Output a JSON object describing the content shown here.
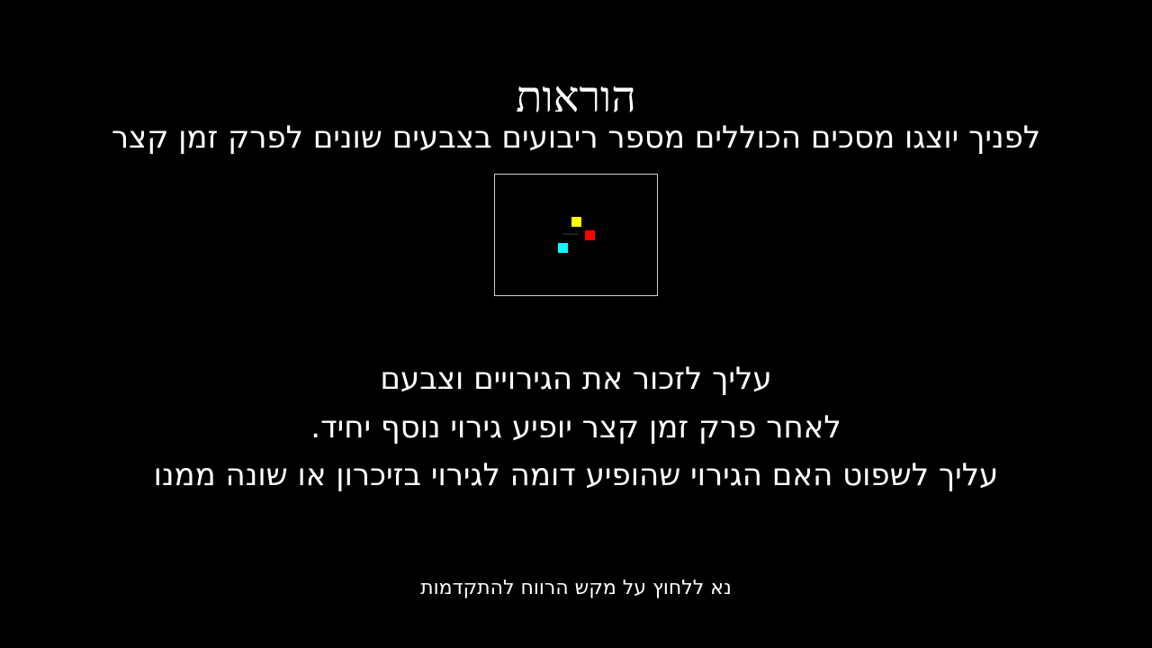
{
  "screen": {
    "background_color": "#000000",
    "text_color": "#ffffff"
  },
  "header": {
    "title": "הוראות",
    "subtitle": "לפניך יוצגו מסכים הכוללים מספר ריבועים בצבעים שונים לפרק זמן קצר"
  },
  "example": {
    "squares": [
      {
        "color": "#ffff00",
        "name": "yellow"
      },
      {
        "color": "#ff0000",
        "name": "red"
      },
      {
        "color": "#00ffff",
        "name": "cyan"
      }
    ],
    "tiny_text": "Focus here"
  },
  "instructions": {
    "line1": "עליך לזכור את הגירויים וצבעם",
    "line2": "לאחר פרק זמן קצר יופיע גירוי נוסף יחיד.",
    "line3": "עליך לשפוט האם הגירוי שהופיע דומה לגירוי בזיכרון או שונה ממנו"
  },
  "footer": {
    "prompt": "נא ללחוץ על מקש הרווח להתקדמות"
  }
}
